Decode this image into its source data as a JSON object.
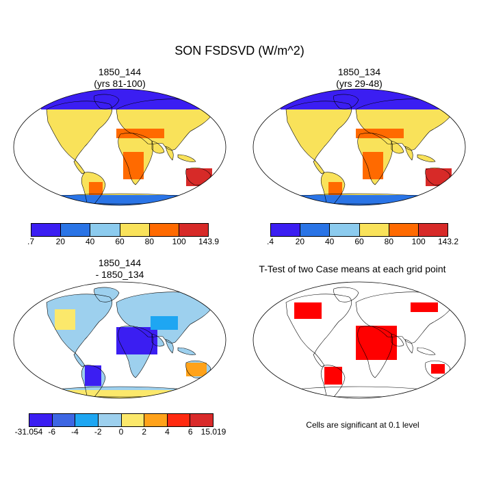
{
  "title": "SON FSDSVD (W/m^2)",
  "panels": [
    {
      "line1": "1850_144",
      "line2": "(yrs 81-100)"
    },
    {
      "line1": "1850_134",
      "line2": "(yrs 29-48)"
    },
    {
      "line1": "1850_144",
      "line2": "- 1850_134"
    },
    {
      "line1": "T-Test of two Case means at each grid point",
      "line2": ""
    }
  ],
  "colorbars": [
    {
      "colors": [
        "#3b1ef2",
        "#2a74e6",
        "#8ccbee",
        "#f9e25a",
        "#ff6a00",
        "#d72a28"
      ],
      "labels": [
        ".7",
        "20",
        "40",
        "60",
        "80",
        "100",
        "143.9"
      ]
    },
    {
      "colors": [
        "#3b1ef2",
        "#2a74e6",
        "#8ccbee",
        "#f9e25a",
        "#ff6a00",
        "#d72a28"
      ],
      "labels": [
        ".4",
        "20",
        "40",
        "60",
        "80",
        "100",
        "143.2"
      ]
    },
    {
      "colors": [
        "#3b1ef2",
        "#3d66e3",
        "#1ea6f2",
        "#9dd0ee",
        "#fbe86b",
        "#ffa21a",
        "#ff2a10",
        "#d92a2a"
      ],
      "labels": [
        "-31.054",
        "-6",
        "-4",
        "-2",
        "0",
        "2",
        "4",
        "6",
        "15.019"
      ]
    }
  ],
  "note": "Cells are significant at 0.1 level"
}
